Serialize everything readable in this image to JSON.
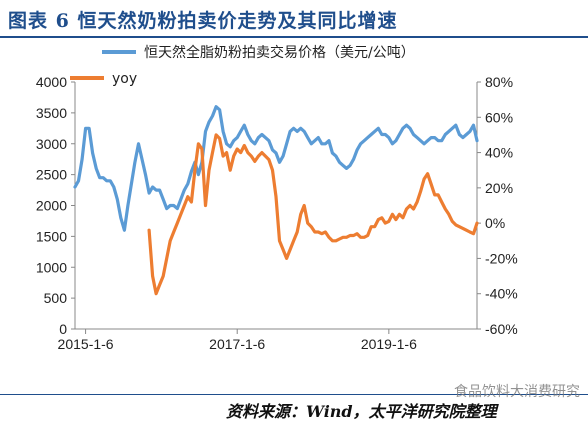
{
  "header": {
    "title": "图表 6  恒天然奶粉拍卖价走势及其同比增速"
  },
  "footer": {
    "source": "资料来源：Wind，太平洋研究院整理",
    "watermark": "食品饮料大消费研究"
  },
  "chart_data": {
    "type": "line",
    "x_tick_labels": [
      "2015-1-6",
      "2017-1-6",
      "2019-1-6"
    ],
    "left_axis": {
      "ylim": [
        0,
        4000
      ],
      "ticks": [
        0,
        500,
        1000,
        1500,
        2000,
        2500,
        3000,
        3500,
        4000
      ]
    },
    "right_axis": {
      "ylim": [
        -60,
        80
      ],
      "ticks": [
        "-60%",
        "-40%",
        "-20%",
        "0%",
        "20%",
        "40%",
        "60%",
        "80%"
      ],
      "tick_values": [
        -60,
        -40,
        -20,
        0,
        20,
        40,
        60,
        80
      ]
    },
    "grid": false,
    "legend_position": "top",
    "series": [
      {
        "name": "恒天然全脂奶粉拍卖交易价格（美元/公吨）",
        "axis": "left",
        "color": "#5b9bd5",
        "values": [
          2300,
          2400,
          2750,
          3250,
          3250,
          2850,
          2600,
          2450,
          2450,
          2400,
          2400,
          2300,
          2100,
          1800,
          1600,
          2000,
          2350,
          2700,
          3000,
          2750,
          2500,
          2200,
          2300,
          2250,
          2250,
          2100,
          1950,
          2000,
          2000,
          1950,
          2100,
          2250,
          2350,
          2550,
          2700,
          2500,
          2700,
          3200,
          3350,
          3450,
          3600,
          3550,
          3200,
          3000,
          2950,
          3050,
          3100,
          3200,
          3300,
          3150,
          3050,
          3000,
          3100,
          3150,
          3100,
          3050,
          2900,
          2850,
          2700,
          2800,
          3000,
          3200,
          3250,
          3200,
          3250,
          3200,
          3100,
          3000,
          3050,
          3100,
          3000,
          3000,
          3050,
          2850,
          2800,
          2700,
          2650,
          2600,
          2650,
          2750,
          2900,
          3000,
          3050,
          3100,
          3150,
          3200,
          3250,
          3150,
          3150,
          3100,
          3000,
          3050,
          3150,
          3250,
          3300,
          3250,
          3150,
          3100,
          3050,
          3000,
          3050,
          3100,
          3100,
          3050,
          3050,
          3150,
          3200,
          3250,
          3300,
          3150,
          3100,
          3150,
          3200,
          3300,
          3050
        ]
      },
      {
        "name": "yoy",
        "axis": "right",
        "color": "#ed7d31",
        "values": [
          null,
          null,
          null,
          null,
          null,
          null,
          null,
          null,
          null,
          null,
          null,
          null,
          null,
          null,
          null,
          null,
          null,
          null,
          null,
          null,
          null,
          -4,
          -30,
          -40,
          -35,
          -30,
          -20,
          -10,
          -5,
          0,
          5,
          10,
          15,
          12,
          30,
          45,
          42,
          10,
          30,
          40,
          50,
          48,
          38,
          40,
          30,
          38,
          42,
          40,
          44,
          40,
          38,
          35,
          38,
          40,
          38,
          36,
          30,
          15,
          -10,
          -15,
          -20,
          -15,
          -10,
          -5,
          5,
          10,
          0,
          -2,
          -5,
          -5,
          -6,
          -5,
          -8,
          -10,
          -10,
          -9,
          -8,
          -8,
          -7,
          -7,
          -6,
          -8,
          -8,
          -7,
          -2,
          -2,
          2,
          3,
          0,
          1,
          5,
          2,
          5,
          3,
          8,
          10,
          8,
          12,
          18,
          25,
          28,
          22,
          16,
          16,
          12,
          8,
          5,
          1,
          -1,
          -2,
          -3,
          -4,
          -5,
          -6,
          0
        ]
      }
    ]
  }
}
